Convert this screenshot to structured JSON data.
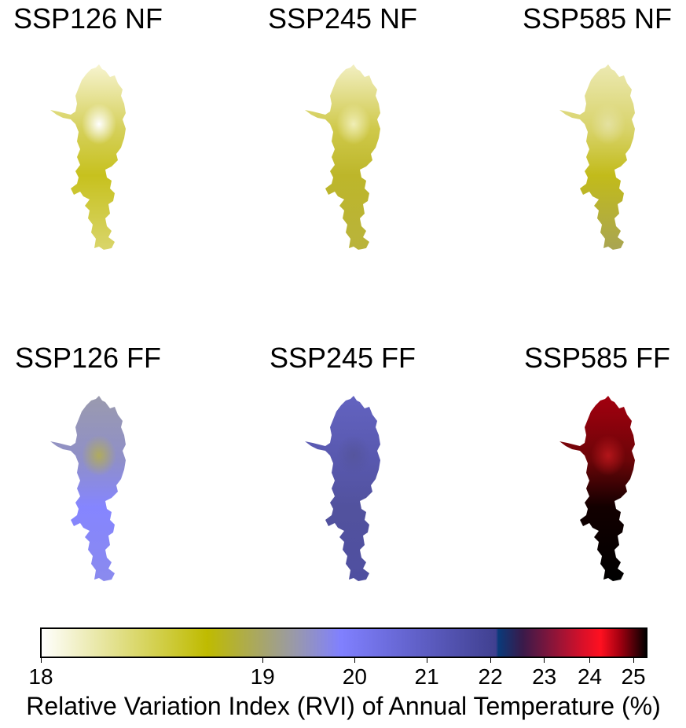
{
  "panels": [
    {
      "title": "SSP126 NF",
      "colors": {
        "top": "#f7f4d0",
        "mid": "#d5d05a",
        "low": "#c7c11e",
        "tail": "#d9d56b",
        "spot": "#ffffff"
      }
    },
    {
      "title": "SSP245 NF",
      "colors": {
        "top": "#f2efc2",
        "mid": "#cfc94a",
        "low": "#bdb62a",
        "tail": "#b9b33b",
        "spot": "#f0eeb6"
      }
    },
    {
      "title": "SSP585 NF",
      "colors": {
        "top": "#ece9b2",
        "mid": "#d8d36a",
        "low": "#c2bb1a",
        "tail": "#a9a552",
        "spot": "#e4e1a0"
      }
    },
    {
      "title": "SSP126 FF",
      "colors": {
        "top": "#9a9aae",
        "mid": "#8f8fc9",
        "low": "#8585ff",
        "tail": "#8a8aee",
        "spot": "#b0ab5e"
      }
    },
    {
      "title": "SSP245 FF",
      "colors": {
        "top": "#6363c0",
        "mid": "#5858ae",
        "low": "#52529e",
        "tail": "#4f4fa0",
        "spot": "#55559e"
      }
    },
    {
      "title": "SSP585 FF",
      "colors": {
        "top": "#a3000f",
        "mid": "#6b0508",
        "low": "#120000",
        "tail": "#000000",
        "spot": "#b3151a"
      }
    }
  ],
  "colorbar": {
    "title": "Relative Variation Index (RVI) of Annual Temperature (%)",
    "ticks": [
      "18",
      "19",
      "20",
      "21",
      "22",
      "23",
      "24",
      "25"
    ],
    "min": 18,
    "max": 25.2,
    "stops": [
      {
        "value": 18.0,
        "color": "#ffffff"
      },
      {
        "value": 18.75,
        "color": "#bfbb00"
      },
      {
        "value": 19.35,
        "color": "#9999aa"
      },
      {
        "value": 19.85,
        "color": "#8080ff"
      },
      {
        "value": 22.1,
        "color": "#404090"
      },
      {
        "value": 22.15,
        "color": "#0a3a7a"
      },
      {
        "value": 22.6,
        "color": "#3a1a4a"
      },
      {
        "value": 23.8,
        "color": "#d4102a"
      },
      {
        "value": 24.25,
        "color": "#ff1020"
      },
      {
        "value": 24.7,
        "color": "#a00010"
      },
      {
        "value": 25.2,
        "color": "#000000"
      }
    ]
  }
}
